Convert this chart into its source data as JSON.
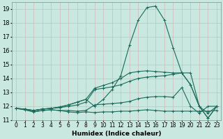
{
  "xlabel": "Humidex (Indice chaleur)",
  "ylabel": "",
  "xlim": [
    -0.5,
    23.5
  ],
  "ylim": [
    11,
    19.5
  ],
  "yticks": [
    11,
    12,
    13,
    14,
    15,
    16,
    17,
    18,
    19
  ],
  "xticks": [
    0,
    1,
    2,
    3,
    4,
    5,
    6,
    7,
    8,
    9,
    10,
    11,
    12,
    13,
    14,
    15,
    16,
    17,
    18,
    19,
    20,
    21,
    22,
    23
  ],
  "bg_color": "#c8e8e0",
  "grid_color": "#b8d8d0",
  "line_color": "#1a6b5a",
  "series": [
    {
      "x": [
        0,
        1,
        2,
        3,
        4,
        5,
        6,
        7,
        8,
        9,
        10,
        11,
        12,
        13,
        14,
        15,
        16,
        17,
        18,
        19,
        20,
        21,
        22,
        23
      ],
      "y": [
        11.85,
        11.75,
        11.6,
        11.7,
        11.75,
        11.7,
        11.6,
        11.55,
        11.6,
        11.55,
        11.6,
        11.6,
        11.65,
        11.65,
        11.7,
        11.75,
        11.7,
        11.65,
        11.65,
        11.65,
        11.65,
        11.65,
        11.65,
        11.7
      ]
    },
    {
      "x": [
        0,
        1,
        2,
        3,
        4,
        5,
        6,
        7,
        8,
        9,
        10,
        11,
        12,
        13,
        14,
        15,
        16,
        17,
        18,
        19,
        20,
        21,
        22,
        23
      ],
      "y": [
        11.85,
        11.75,
        11.6,
        11.7,
        11.75,
        11.7,
        11.7,
        11.65,
        11.7,
        12.1,
        12.15,
        12.2,
        12.25,
        12.35,
        12.55,
        12.65,
        12.7,
        12.7,
        12.65,
        13.35,
        12.0,
        11.5,
        12.0,
        12.0
      ]
    },
    {
      "x": [
        0,
        1,
        2,
        3,
        4,
        5,
        6,
        7,
        8,
        9,
        10,
        11,
        12,
        13,
        14,
        15,
        16,
        17,
        18,
        19,
        20,
        21,
        22,
        23
      ],
      "y": [
        11.85,
        11.8,
        11.7,
        11.8,
        11.85,
        11.9,
        12.0,
        12.1,
        12.3,
        13.2,
        13.3,
        13.4,
        13.55,
        13.8,
        14.0,
        14.1,
        14.15,
        14.2,
        14.3,
        14.4,
        13.55,
        12.0,
        11.5,
        12.0
      ]
    },
    {
      "x": [
        0,
        1,
        2,
        3,
        4,
        5,
        6,
        7,
        8,
        9,
        10,
        11,
        12,
        13,
        14,
        15,
        16,
        17,
        18,
        19,
        20,
        21,
        22,
        23
      ],
      "y": [
        11.85,
        11.8,
        11.7,
        11.8,
        11.85,
        11.95,
        12.1,
        12.3,
        12.5,
        13.3,
        13.5,
        13.7,
        14.0,
        14.4,
        14.5,
        14.55,
        14.5,
        14.45,
        14.4,
        14.4,
        13.55,
        12.0,
        11.15,
        12.0
      ]
    },
    {
      "x": [
        0,
        1,
        2,
        3,
        4,
        5,
        6,
        7,
        8,
        9,
        10,
        11,
        12,
        13,
        14,
        15,
        16,
        17,
        18,
        19,
        20,
        21,
        22,
        23
      ],
      "y": [
        11.85,
        11.8,
        11.7,
        11.8,
        11.85,
        11.95,
        12.1,
        12.3,
        12.5,
        12.0,
        12.5,
        13.2,
        14.2,
        16.4,
        18.2,
        19.1,
        19.2,
        18.2,
        16.2,
        14.4,
        14.4,
        12.0,
        11.15,
        12.0
      ]
    }
  ]
}
